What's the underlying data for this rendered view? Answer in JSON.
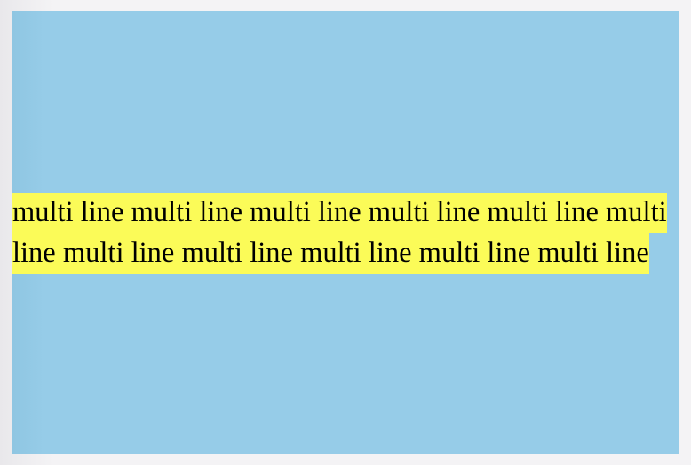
{
  "content": {
    "text": "multi line multi line multi line multi line multi line multi line multi line multi line multi line multi line multi line"
  },
  "colors": {
    "panel_background": "#96cce8",
    "highlight": "#fbfb58",
    "page_background": "#f4f3f5",
    "text": "#000000"
  }
}
